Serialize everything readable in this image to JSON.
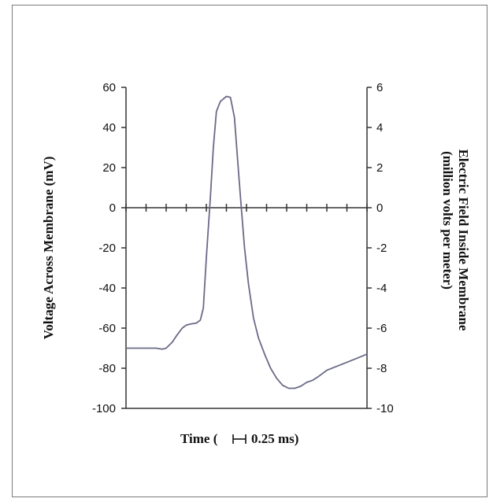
{
  "chart_data": {
    "type": "line",
    "title": "",
    "xlabel_prefix": "Time (",
    "xlabel_scale_glyph": "⊢⊣",
    "xlabel_suffix": "0.25 ms)",
    "ylabel": "Voltage Across Membrane (mV)",
    "y2label_line1": "Electric Field Inside Membrane",
    "y2label_line2": "(million volts per meter)",
    "ylim": [
      -100,
      60
    ],
    "y2lim": [
      -10,
      6
    ],
    "yticks": [
      "60",
      "40",
      "20",
      "0",
      "-20",
      "-40",
      "-60",
      "-80",
      "-100"
    ],
    "y2ticks": [
      "6",
      "4",
      "2",
      "0",
      "-2",
      "-4",
      "-6",
      "-8",
      "-10"
    ],
    "grid": false,
    "x_tick_count": 13,
    "series": [
      {
        "color": "#6a6a88",
        "x": [
          0,
          0.5,
          1.0,
          1.5,
          1.8,
          2.0,
          2.3,
          2.5,
          2.8,
          3.0,
          3.2,
          3.5,
          3.7,
          3.85,
          4.0,
          4.2,
          4.35,
          4.5,
          4.7,
          5.0,
          5.2,
          5.4,
          5.55,
          5.7,
          5.9,
          6.1,
          6.35,
          6.6,
          6.9,
          7.2,
          7.5,
          7.8,
          8.1,
          8.4,
          8.7,
          9.0,
          9.3,
          9.6,
          10.0,
          10.5,
          11.0,
          11.5,
          12.0
        ],
        "y": [
          -70,
          -70,
          -70,
          -70,
          -70.5,
          -70,
          -67,
          -64,
          -60,
          -58.5,
          -58,
          -57.5,
          -56,
          -50,
          -25,
          5,
          30,
          48,
          53,
          55.5,
          55,
          45,
          25,
          5,
          -20,
          -38,
          -55,
          -65,
          -73,
          -80,
          -85,
          -88.5,
          -90,
          -90,
          -89,
          -87,
          -86,
          -84,
          -81,
          -79,
          -77,
          -75,
          -73
        ]
      }
    ]
  }
}
